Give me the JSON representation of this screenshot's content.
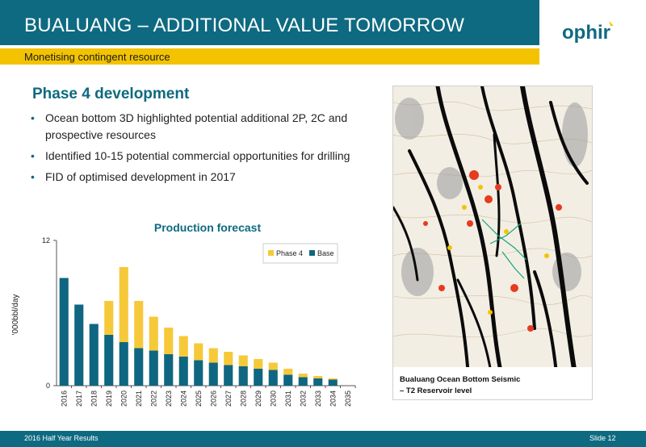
{
  "slide": {
    "title": "BUALUANG – ADDITIONAL VALUE TOMORROW",
    "subtitle": "Monetising contingent resource",
    "logo_text": "ophir"
  },
  "content": {
    "heading": "Phase 4 development",
    "bullets": [
      "Ocean bottom 3D highlighted potential additional 2P, 2C and prospective resources",
      "Identified 10-15 potential commercial opportunities for drilling",
      "FID of optimised development in 2017"
    ]
  },
  "image_panel": {
    "caption_line1": "Bualuang Ocean Bottom Seismic",
    "caption_line2": "– T2 Reservoir level"
  },
  "footer": {
    "left": "2016 Half Year Results",
    "right": "Slide 12"
  },
  "colors": {
    "teal": "#0e6a80",
    "yellow": "#f3c300",
    "phase4": "#f6c93a",
    "base": "#0f6680"
  },
  "chart_data": {
    "type": "bar",
    "stacked": true,
    "title": "Production forecast",
    "ylabel": "'000bbl/day",
    "xlabel": "",
    "ylim": [
      0,
      12
    ],
    "yticks": [
      0,
      12
    ],
    "legend_position": "top-right",
    "categories": [
      "2016",
      "2017",
      "2018",
      "2019",
      "2020",
      "2021",
      "2022",
      "2023",
      "2024",
      "2025",
      "2026",
      "2027",
      "2028",
      "2029",
      "2030",
      "2031",
      "2032",
      "2033",
      "2034",
      "2035"
    ],
    "series": [
      {
        "name": "Base",
        "values": [
          8.9,
          6.7,
          5.1,
          4.2,
          3.6,
          3.1,
          2.9,
          2.6,
          2.4,
          2.1,
          1.9,
          1.7,
          1.6,
          1.4,
          1.3,
          0.9,
          0.7,
          0.6,
          0.5,
          0
        ]
      },
      {
        "name": "Phase 4",
        "values": [
          0,
          0,
          0,
          2.8,
          6.2,
          3.9,
          2.8,
          2.2,
          1.7,
          1.4,
          1.2,
          1.1,
          0.9,
          0.8,
          0.6,
          0.5,
          0.3,
          0.2,
          0.1,
          0
        ]
      }
    ]
  }
}
